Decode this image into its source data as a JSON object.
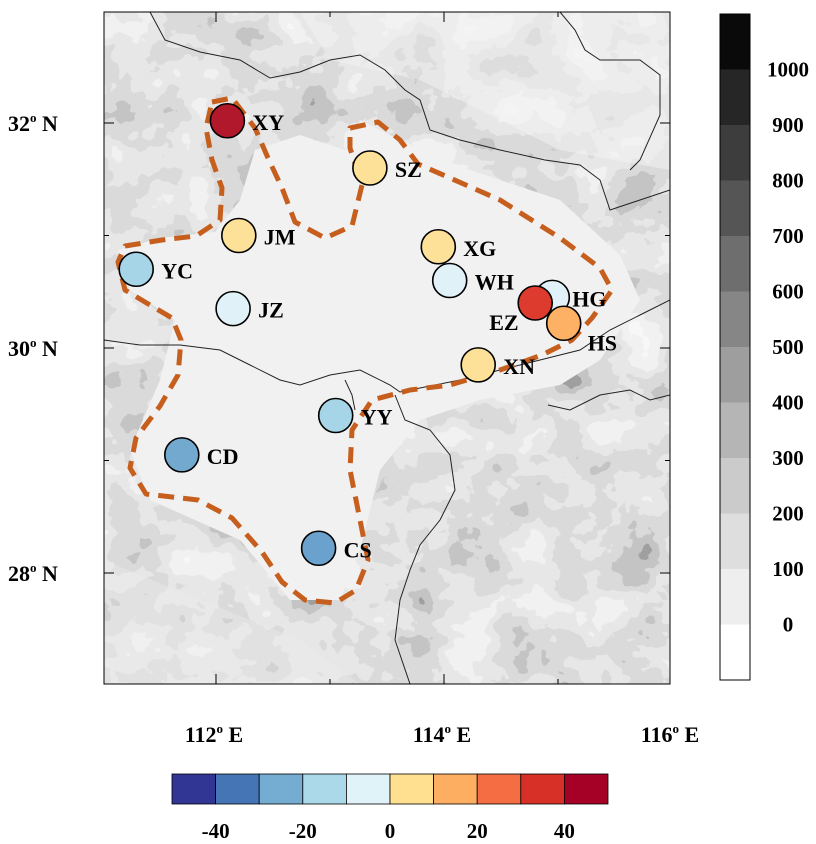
{
  "map": {
    "lon_range": [
      111,
      116
    ],
    "lat_range": [
      27,
      33
    ],
    "x_ticks": [
      {
        "value": 112,
        "deg": "112",
        "sup": "o",
        "hemi": " E"
      },
      {
        "value": 114,
        "deg": "114",
        "sup": "o",
        "hemi": " E"
      },
      {
        "value": 116,
        "deg": "116",
        "sup": "o",
        "hemi": " E"
      }
    ],
    "y_ticks": [
      {
        "value": 32,
        "deg": "32",
        "sup": "o",
        "hemi": " N"
      },
      {
        "value": 30,
        "deg": "30",
        "sup": "o",
        "hemi": " N"
      },
      {
        "value": 28,
        "deg": "28",
        "sup": "o",
        "hemi": " N"
      }
    ],
    "region_outline_color": "#c65f1e",
    "background_shading": "terrain elevation (grey)"
  },
  "stations": [
    {
      "code": "XY",
      "lon": 112.1,
      "lat": 32.02,
      "value": 45,
      "color": "#b1182b"
    },
    {
      "code": "SZ",
      "lon": 113.35,
      "lat": 31.6,
      "value": 10,
      "color": "#fde199"
    },
    {
      "code": "JM",
      "lon": 112.2,
      "lat": 31.0,
      "value": 10,
      "color": "#fde199"
    },
    {
      "code": "XG",
      "lon": 113.95,
      "lat": 30.9,
      "value": 10,
      "color": "#fde199"
    },
    {
      "code": "YC",
      "lon": 111.3,
      "lat": 30.7,
      "value": -10,
      "color": "#a7d5e8"
    },
    {
      "code": "WH",
      "lon": 114.05,
      "lat": 30.6,
      "value": 0,
      "color": "#e0f2f8"
    },
    {
      "code": "HG",
      "lon": 114.95,
      "lat": 30.45,
      "value": 0,
      "color": "#e0f2f8"
    },
    {
      "code": "EZ",
      "lon": 114.8,
      "lat": 30.4,
      "value": 35,
      "color": "#dd3b2d"
    },
    {
      "code": "HS",
      "lon": 115.05,
      "lat": 30.22,
      "value": 20,
      "color": "#fcb164"
    },
    {
      "code": "JZ",
      "lon": 112.15,
      "lat": 30.35,
      "value": 0,
      "color": "#e0f2f8"
    },
    {
      "code": "XN",
      "lon": 114.3,
      "lat": 29.85,
      "value": 10,
      "color": "#fde199"
    },
    {
      "code": "YY",
      "lon": 113.05,
      "lat": 29.4,
      "value": -10,
      "color": "#a7d5e8"
    },
    {
      "code": "CD",
      "lon": 111.7,
      "lat": 29.05,
      "value": -30,
      "color": "#74a9cf"
    },
    {
      "code": "CS",
      "lon": 112.9,
      "lat": 28.22,
      "value": -30,
      "color": "#6ba2cd"
    }
  ],
  "elevation_colorbar": {
    "labels": [
      "1000",
      "900",
      "800",
      "700",
      "600",
      "500",
      "400",
      "300",
      "200",
      "100",
      "0"
    ],
    "colors": [
      "#0a0a0a",
      "#262626",
      "#3d3d3d",
      "#555555",
      "#6e6e6e",
      "#868686",
      "#9e9e9e",
      "#b5b5b5",
      "#cbcbcb",
      "#dedede",
      "#eeeeee",
      "#ffffff"
    ]
  },
  "value_colorbar": {
    "labels": [
      "-40",
      "-20",
      "0",
      "20",
      "40"
    ],
    "colors": [
      "#313695",
      "#4575b4",
      "#74add1",
      "#abd9e9",
      "#e0f3f8",
      "#fee090",
      "#fdae61",
      "#f46d43",
      "#d73027",
      "#a50026"
    ]
  }
}
